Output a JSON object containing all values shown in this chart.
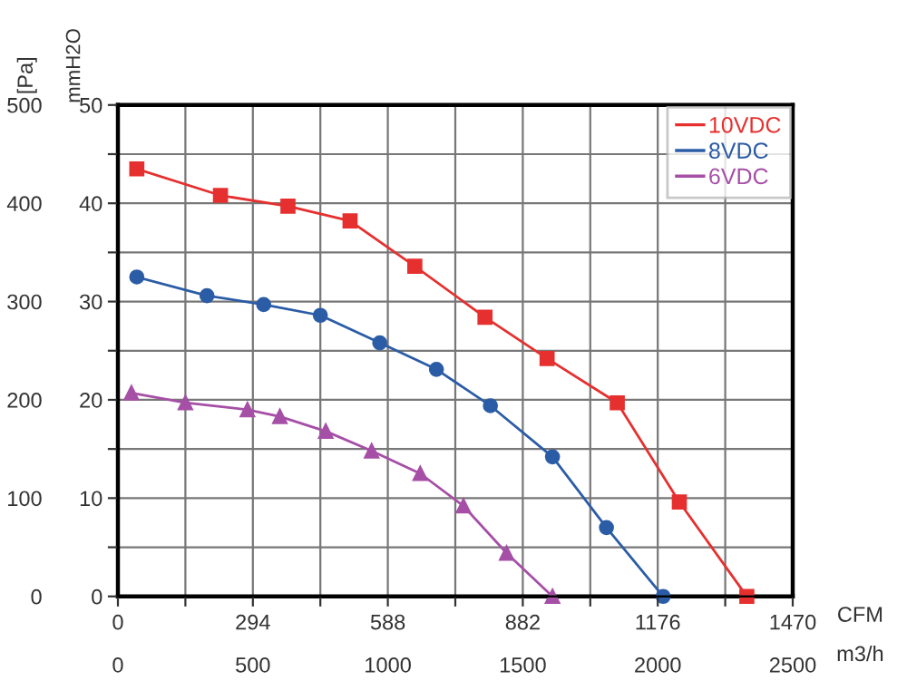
{
  "chart_data": {
    "type": "line",
    "xlabel": "m3/h",
    "x2label": "CFM",
    "ylabel": "[Pa]",
    "y2label": "mmH2O",
    "xlim": [
      0,
      2500
    ],
    "xticks": [
      0,
      {
        "value": 250,
        "label": null
      },
      500,
      {
        "value": 750,
        "label": null
      },
      1000,
      {
        "value": 1250,
        "label": null
      },
      1500,
      {
        "value": 1750,
        "label": null
      },
      2000,
      {
        "value": 2250,
        "label": null
      },
      2500
    ],
    "x2lim": [
      0,
      1470
    ],
    "x2ticks": [
      0,
      {
        "value": 147,
        "label": null
      },
      294,
      {
        "value": 441,
        "label": null
      },
      588,
      {
        "value": 735,
        "label": null
      },
      882,
      {
        "value": 1029,
        "label": null
      },
      1176,
      {
        "value": 1323,
        "label": null
      },
      1470
    ],
    "ylim": [
      0,
      500
    ],
    "yticks": [
      0,
      {
        "value": 50,
        "label": null
      },
      100,
      {
        "value": 150,
        "label": null
      },
      200,
      {
        "value": 250,
        "label": null
      },
      300,
      {
        "value": 350,
        "label": null
      },
      400,
      {
        "value": 450,
        "label": null
      },
      500
    ],
    "y2lim": [
      0,
      50
    ],
    "y2ticks": [
      0,
      {
        "value": 5,
        "label": null
      },
      10,
      {
        "value": 15,
        "label": null
      },
      20,
      {
        "value": 25,
        "label": null
      },
      30,
      {
        "value": 35,
        "label": null
      },
      40,
      {
        "value": 45,
        "label": null
      },
      50
    ],
    "grid": true,
    "legend": "top right",
    "line_style": "solid",
    "series": [
      {
        "name": "10VDC",
        "color": "#e5302f",
        "marker": "square",
        "x": [
          70,
          380,
          630,
          860,
          1100,
          1360,
          1590,
          1850,
          2080,
          2330
        ],
        "values": [
          435,
          408,
          397,
          382,
          336,
          284,
          242,
          197,
          96,
          0
        ]
      },
      {
        "name": "8VDC",
        "color": "#2b5ca6",
        "marker": "circle",
        "x": [
          70,
          330,
          540,
          750,
          970,
          1180,
          1380,
          1610,
          1810,
          2020
        ],
        "values": [
          325,
          306,
          297,
          286,
          258,
          231,
          194,
          142,
          70,
          0
        ]
      },
      {
        "name": "6VDC",
        "color": "#a64fa6",
        "marker": "triangle",
        "x": [
          50,
          250,
          480,
          600,
          770,
          940,
          1120,
          1280,
          1440,
          1610
        ],
        "values": [
          207,
          197,
          190,
          183,
          168,
          148,
          125,
          92,
          44,
          0
        ]
      }
    ]
  }
}
